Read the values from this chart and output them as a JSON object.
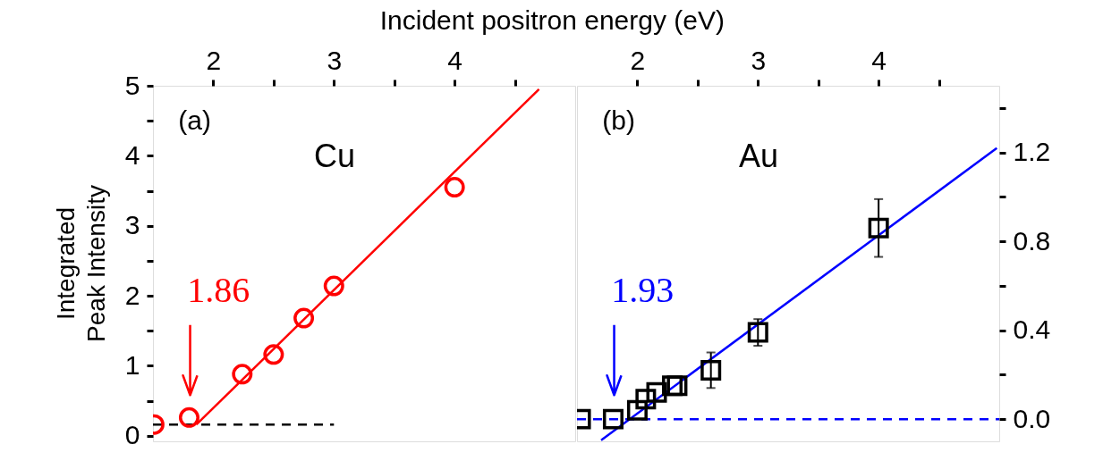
{
  "chart_data": [
    {
      "type": "scatter",
      "xlabel": "Incident positron energy (eV)",
      "ylabel": "Integrated\nPeak Intensity",
      "xlim": [
        1.5,
        5
      ],
      "ylim": [
        -0.08,
        5
      ],
      "xticks": [
        2,
        {
          "value": 2.5,
          "label": null
        },
        3,
        {
          "value": 3.5,
          "label": null
        },
        4,
        {
          "value": 4.5,
          "label": null
        }
      ],
      "yticks": [
        0,
        {
          "value": 0.5,
          "label": null
        },
        1,
        {
          "value": 1.5,
          "label": null
        },
        2,
        {
          "value": 2.5,
          "label": null
        },
        3,
        {
          "value": 3.5,
          "label": null
        },
        4,
        {
          "value": 4.5,
          "label": null
        },
        5
      ],
      "grid": false,
      "annotations": [
        "(a)",
        "Cu",
        "1.86"
      ],
      "series": [
        {
          "marker": "circle",
          "color": "#ff0000",
          "x": [
            1.51,
            1.8,
            2.24,
            2.5,
            2.75,
            3.0,
            4.0
          ],
          "values": [
            0.16,
            0.26,
            0.88,
            1.16,
            1.68,
            2.14,
            3.55
          ]
        },
        {
          "type": "line",
          "marker": "none",
          "color": "#ff0000",
          "line_style": "solid",
          "x": [
            1.86,
            4.7
          ],
          "values": [
            0.16,
            4.95
          ]
        },
        {
          "type": "line",
          "marker": "none",
          "color": "#000000",
          "line_style": "dashed",
          "x": [
            1.5,
            3.0
          ],
          "values": [
            0.16,
            0.16
          ]
        }
      ]
    },
    {
      "type": "scatter",
      "xlim": [
        1.5,
        5
      ],
      "ylim": [
        -0.1,
        1.5
      ],
      "xticks": [
        2,
        {
          "value": 2.5,
          "label": null
        },
        3,
        {
          "value": 3.5,
          "label": null
        },
        4,
        {
          "value": 4.5,
          "label": null
        }
      ],
      "yticks": [
        {
          "value": 0,
          "label": "0.0"
        },
        {
          "value": 0.2,
          "label": null
        },
        0.4,
        {
          "value": 0.6,
          "label": null
        },
        0.8,
        {
          "value": 1.0,
          "label": null
        },
        1.2,
        {
          "value": 1.4,
          "label": null
        }
      ],
      "grid": false,
      "annotations": [
        "(b)",
        "Au",
        "1.93"
      ],
      "series": [
        {
          "marker": "square",
          "color": "#000000",
          "x": [
            1.53,
            1.8,
            2.0,
            2.07,
            2.16,
            2.29,
            2.33,
            2.61,
            3.0,
            4.0
          ],
          "values": [
            0.0,
            0.0,
            0.04,
            0.09,
            0.12,
            0.15,
            0.15,
            0.22,
            0.39,
            0.86
          ],
          "errors": [
            null,
            null,
            null,
            null,
            null,
            null,
            null,
            0.08,
            0.06,
            0.13
          ]
        },
        {
          "type": "line",
          "marker": "none",
          "color": "#0000ff",
          "line_style": "solid",
          "x": [
            1.7,
            4.98
          ],
          "values": [
            -0.095,
            1.22
          ]
        },
        {
          "type": "line",
          "marker": "none",
          "color": "#0000ff",
          "line_style": "dashed",
          "x": [
            1.5,
            5
          ],
          "values": [
            0,
            0
          ]
        }
      ]
    }
  ]
}
